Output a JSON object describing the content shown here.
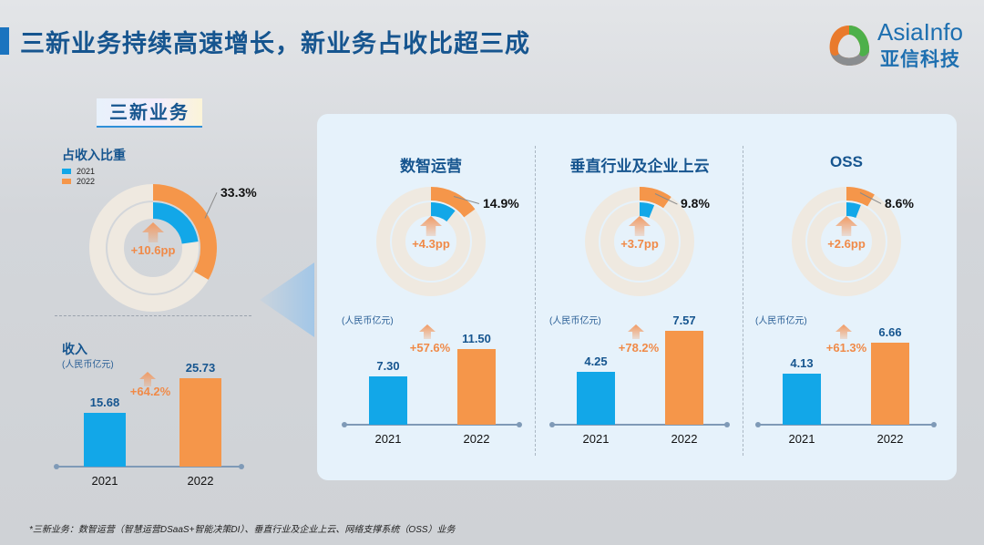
{
  "title": "三新业务持续高速增长，新业务占收比超三成",
  "logo": {
    "en": "AsiaInfo",
    "cn": "亚信科技"
  },
  "badge": "三新业务",
  "footnote": "*三新业务：数智运营（智慧运营DSaaS+智能决策DI）、垂直行业及企业上云、网络支撑系统（OSS）业务",
  "colors": {
    "y2021": "#12a7e8",
    "y2022": "#f5964a",
    "ring": "#efe9e0",
    "title": "#16558f"
  },
  "chart_data": [
    {
      "title": "",
      "share": {
        "type": "pie",
        "title": "占收入比重",
        "legend": [
          "2021",
          "2022"
        ],
        "legend_position": "top-left",
        "series": [
          {
            "name": "2021",
            "value": 22.7
          },
          {
            "name": "2022",
            "value": 33.3
          }
        ],
        "label": "33.3%",
        "change": "+10.6pp"
      },
      "revenue": {
        "type": "bar",
        "title": "收入",
        "unit": "(人民币亿元)",
        "categories": [
          "2021",
          "2022"
        ],
        "values": [
          15.68,
          25.73
        ],
        "labels": [
          "15.68",
          "25.73"
        ],
        "growth": "+64.2%"
      }
    },
    {
      "title": "数智运营",
      "share": {
        "type": "pie",
        "series": [
          {
            "name": "2021",
            "value": 10.6
          },
          {
            "name": "2022",
            "value": 14.9
          }
        ],
        "label": "14.9%",
        "change": "+4.3pp"
      },
      "revenue": {
        "type": "bar",
        "unit": "(人民币亿元)",
        "categories": [
          "2021",
          "2022"
        ],
        "values": [
          7.3,
          11.5
        ],
        "labels": [
          "7.30",
          "11.50"
        ],
        "growth": "+57.6%"
      }
    },
    {
      "title": "垂直行业及企业上云",
      "share": {
        "type": "pie",
        "series": [
          {
            "name": "2021",
            "value": 6.1
          },
          {
            "name": "2022",
            "value": 9.8
          }
        ],
        "label": "9.8%",
        "change": "+3.7pp"
      },
      "revenue": {
        "type": "bar",
        "unit": "(人民币亿元)",
        "categories": [
          "2021",
          "2022"
        ],
        "values": [
          4.25,
          7.57
        ],
        "labels": [
          "4.25",
          "7.57"
        ],
        "growth": "+78.2%"
      }
    },
    {
      "title": "OSS",
      "share": {
        "type": "pie",
        "series": [
          {
            "name": "2021",
            "value": 6.0
          },
          {
            "name": "2022",
            "value": 8.6
          }
        ],
        "label": "8.6%",
        "change": "+2.6pp"
      },
      "revenue": {
        "type": "bar",
        "unit": "(人民币亿元)",
        "categories": [
          "2021",
          "2022"
        ],
        "values": [
          4.13,
          6.66
        ],
        "labels": [
          "4.13",
          "6.66"
        ],
        "growth": "+61.3%"
      }
    }
  ]
}
